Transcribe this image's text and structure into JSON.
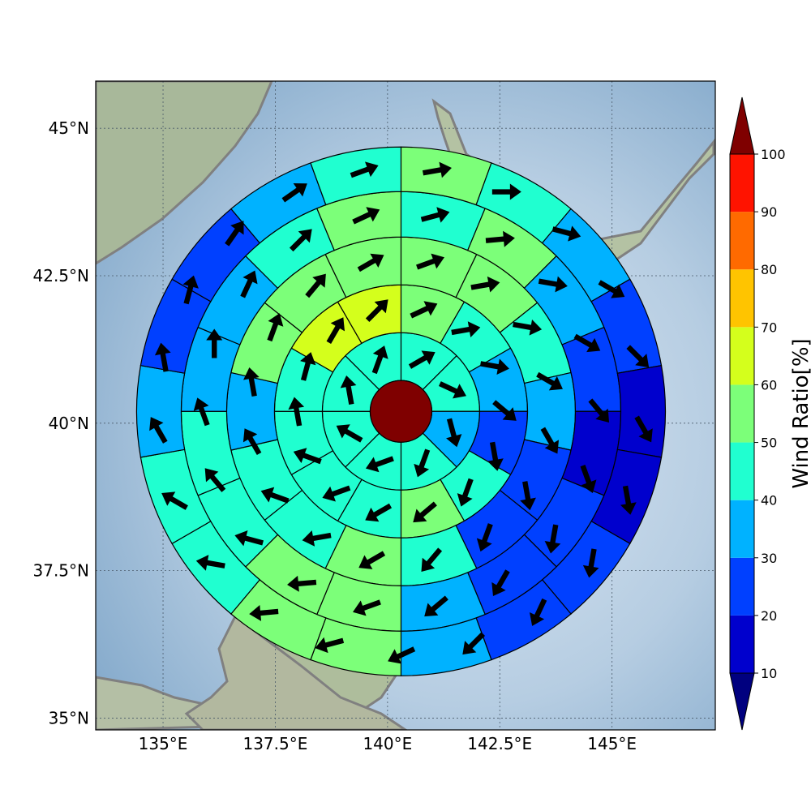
{
  "map": {
    "lon_range": [
      133.5,
      147.3
    ],
    "lat_range": [
      34.8,
      45.8
    ],
    "lon_ticks": [
      {
        "value": 135,
        "label": "135°E"
      },
      {
        "value": 137.5,
        "label": "137.5°E"
      },
      {
        "value": 140,
        "label": "140°E"
      },
      {
        "value": 142.5,
        "label": "142.5°E"
      },
      {
        "value": 145,
        "label": "145°E"
      }
    ],
    "lat_ticks": [
      {
        "value": 35,
        "label": "35°N"
      },
      {
        "value": 37.5,
        "label": "37.5°N"
      },
      {
        "value": 40,
        "label": "40°N"
      },
      {
        "value": 42.5,
        "label": "42.5°N"
      },
      {
        "value": 45,
        "label": "45°N"
      }
    ],
    "gridlines": true,
    "coastline_color": "#808080"
  },
  "colorbar": {
    "label": "Wind Ratio[%]",
    "ticks": [
      "10",
      "20",
      "30",
      "40",
      "50",
      "60",
      "70",
      "80",
      "90",
      "100"
    ],
    "extend": "both",
    "colors": [
      "#0000cd",
      "#0040ff",
      "#00b2ff",
      "#20ffd0",
      "#7cff79",
      "#d4ff1c",
      "#ffc400",
      "#ff6a00",
      "#ff1300"
    ],
    "under_color": "#00007f",
    "over_color": "#7f0000"
  },
  "chart_data": {
    "type": "polar-grid",
    "center_lonlat": [
      140.3,
      40.2
    ],
    "center_value_color": "#7f0000",
    "rings": [
      {
        "ring": 1,
        "values": [
          45,
          45,
          35,
          45,
          45,
          45,
          45,
          45
        ]
      },
      {
        "ring": 2,
        "values": [
          55,
          45,
          35,
          25,
          45,
          55,
          45,
          45,
          45,
          45,
          65,
          65
        ]
      },
      {
        "ring": 3,
        "values": [
          55,
          55,
          45,
          35,
          25,
          25,
          45,
          55,
          45,
          45,
          35,
          55,
          55,
          55
        ]
      },
      {
        "ring": 4,
        "values": [
          45,
          55,
          35,
          25,
          15,
          25,
          25,
          35,
          55,
          55,
          45,
          45,
          35,
          35,
          45,
          55
        ]
      },
      {
        "ring": 5,
        "values": [
          55,
          45,
          35,
          25,
          15,
          15,
          25,
          25,
          35,
          55,
          55,
          45,
          45,
          35,
          25,
          25,
          35,
          45
        ]
      }
    ],
    "arrow_directions_deg_ring": [
      [
        60,
        115,
        165,
        200,
        250,
        300,
        350,
        20
      ],
      [
        65,
        80,
        100,
        130,
        170,
        200,
        230,
        240,
        250,
        290,
        350,
        15,
        30,
        45
      ],
      [
        70,
        80,
        100,
        120,
        150,
        170,
        200,
        220,
        240,
        260,
        290,
        330,
        350,
        20,
        40,
        60
      ],
      [
        75,
        85,
        100,
        120,
        140,
        160,
        190,
        210,
        230,
        250,
        265,
        285,
        320,
        340,
        0,
        25,
        45,
        65
      ],
      [
        80,
        90,
        105,
        120,
        135,
        150,
        170,
        190,
        205,
        225,
        245,
        255,
        265,
        280,
        300,
        330,
        350,
        15,
        35,
        55,
        70
      ]
    ]
  }
}
